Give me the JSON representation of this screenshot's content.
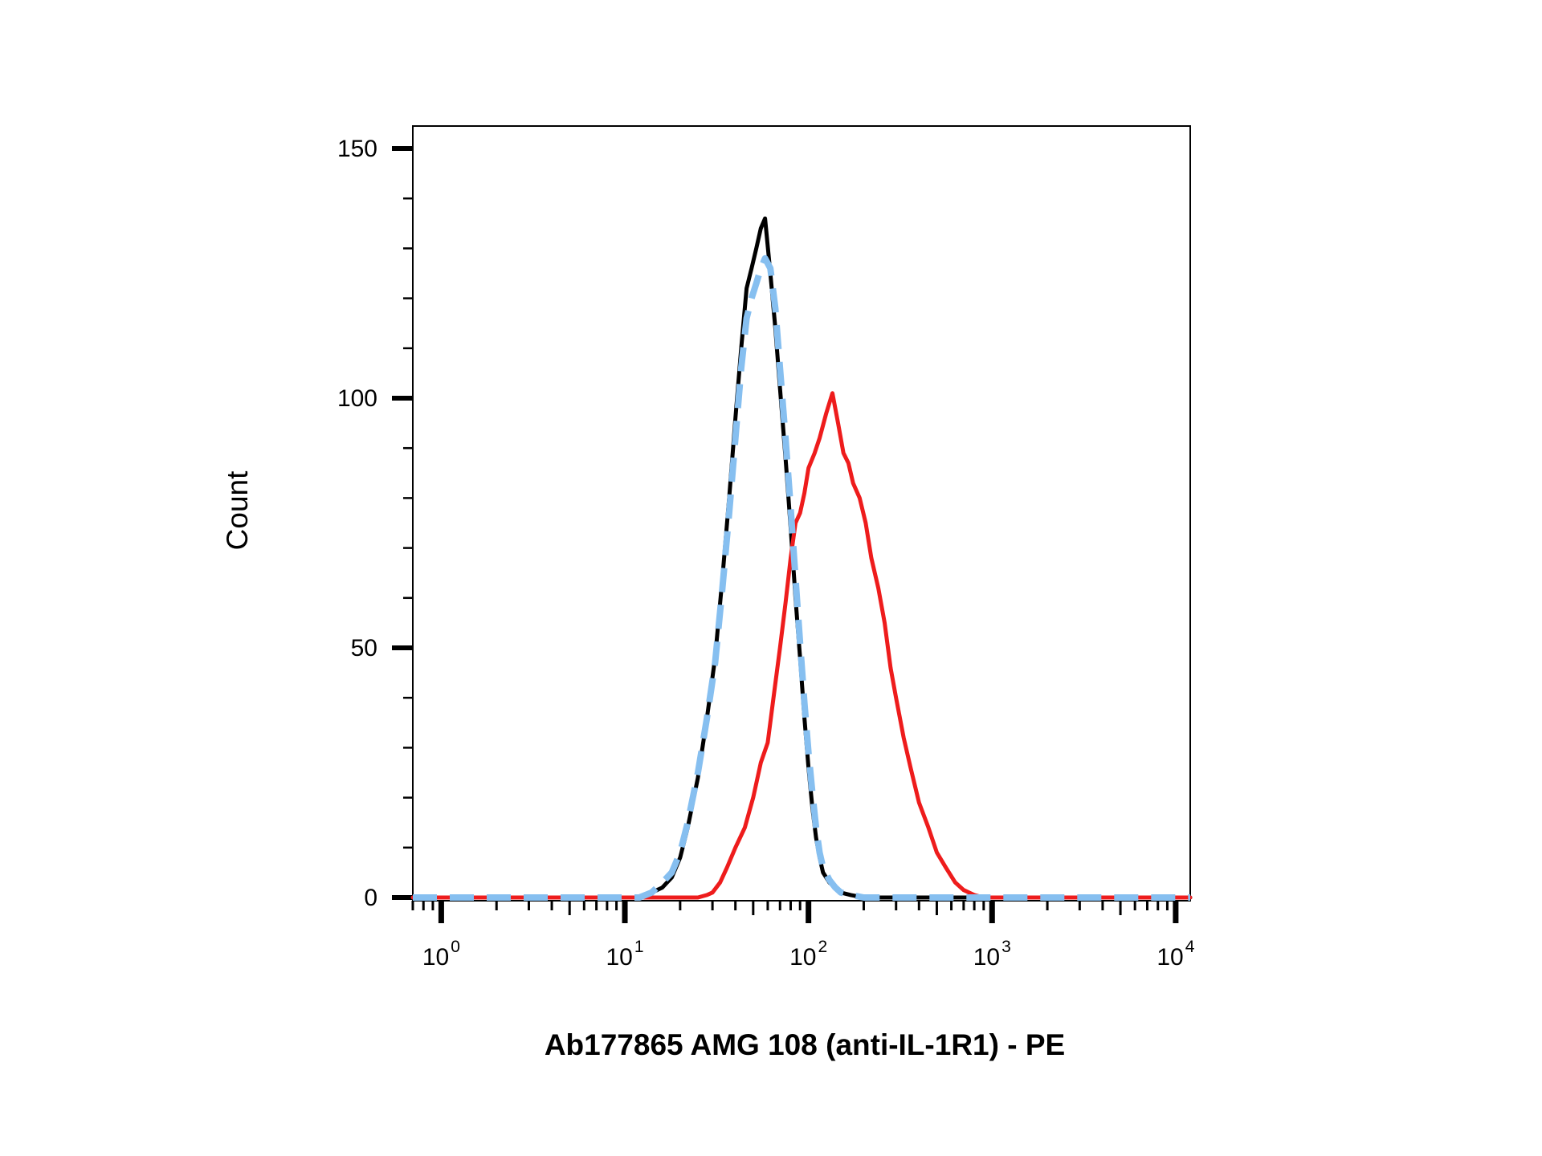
{
  "chart_data": {
    "type": "line",
    "title": "",
    "xlabel": "Ab177865 AMG 108 (anti-IL-1R1) - PE",
    "ylabel": "Count",
    "x_scale": "log",
    "xlim": [
      0.7,
      12000
    ],
    "ylim": [
      0,
      155
    ],
    "y_ticks": [
      0,
      50,
      100,
      150
    ],
    "x_ticks": [
      {
        "value": 1,
        "base": "10",
        "exp": "0"
      },
      {
        "value": 10,
        "base": "10",
        "exp": "1"
      },
      {
        "value": 100,
        "base": "10",
        "exp": "2"
      },
      {
        "value": 1000,
        "base": "10",
        "exp": "3"
      },
      {
        "value": 10000,
        "base": "10",
        "exp": "4"
      }
    ],
    "grid": false,
    "legend": "none",
    "series": [
      {
        "color": "#000000",
        "dashed": false,
        "x": [
          0.7,
          5,
          10,
          12,
          14,
          16,
          18,
          20,
          22,
          25,
          28,
          31,
          34,
          37,
          40,
          43,
          46,
          49,
          52,
          55,
          58,
          62,
          66,
          70,
          75,
          80,
          85,
          90,
          95,
          100,
          105,
          110,
          115,
          120,
          130,
          140,
          150,
          170,
          200,
          260,
          400,
          1000,
          12000
        ],
        "y": [
          0,
          0,
          0,
          0,
          1,
          2,
          4,
          8,
          14,
          24,
          36,
          48,
          64,
          80,
          96,
          110,
          122,
          126,
          130,
          134,
          136,
          125,
          114,
          102,
          88,
          74,
          60,
          48,
          36,
          26,
          18,
          12,
          8,
          5,
          3,
          2,
          1,
          0.5,
          0,
          0,
          0,
          0,
          0
        ]
      },
      {
        "color": "#86bff0",
        "dashed": true,
        "x": [
          0.7,
          5,
          10,
          12,
          14,
          16,
          18,
          20,
          22,
          25,
          28,
          31,
          34,
          37,
          40,
          43,
          46,
          49,
          52,
          55,
          58,
          62,
          66,
          70,
          75,
          80,
          85,
          90,
          95,
          100,
          105,
          110,
          115,
          120,
          130,
          140,
          150,
          170,
          200,
          260,
          400,
          1000,
          12000
        ],
        "y": [
          0,
          0,
          0,
          0,
          1,
          3,
          5,
          9,
          15,
          25,
          36,
          47,
          62,
          77,
          92,
          106,
          116,
          120,
          123,
          126,
          128,
          126,
          118,
          106,
          92,
          78,
          64,
          51,
          39,
          29,
          21,
          14,
          9,
          6,
          3.5,
          2,
          1,
          0.5,
          0,
          0,
          0,
          0,
          0
        ]
      },
      {
        "color": "#ee1c1c",
        "dashed": false,
        "x": [
          0.7,
          10,
          20,
          25,
          28,
          30,
          33,
          36,
          40,
          45,
          50,
          55,
          60,
          65,
          70,
          75,
          80,
          85,
          90,
          95,
          100,
          108,
          115,
          125,
          135,
          145,
          155,
          165,
          175,
          190,
          205,
          220,
          240,
          260,
          280,
          300,
          330,
          360,
          400,
          450,
          500,
          560,
          630,
          700,
          800,
          900,
          1000,
          1200,
          2000,
          12000
        ],
        "y": [
          0,
          0,
          0,
          0,
          0.5,
          1,
          3,
          6,
          10,
          14,
          20,
          27,
          31,
          41,
          50,
          59,
          68,
          75,
          77,
          81,
          86,
          89,
          92,
          97,
          101,
          95,
          89,
          87,
          83,
          80,
          75,
          68,
          62,
          55,
          46,
          40,
          32,
          26,
          19,
          14,
          9,
          6,
          3,
          1.5,
          0.5,
          0,
          0,
          0,
          0,
          0
        ]
      }
    ]
  }
}
